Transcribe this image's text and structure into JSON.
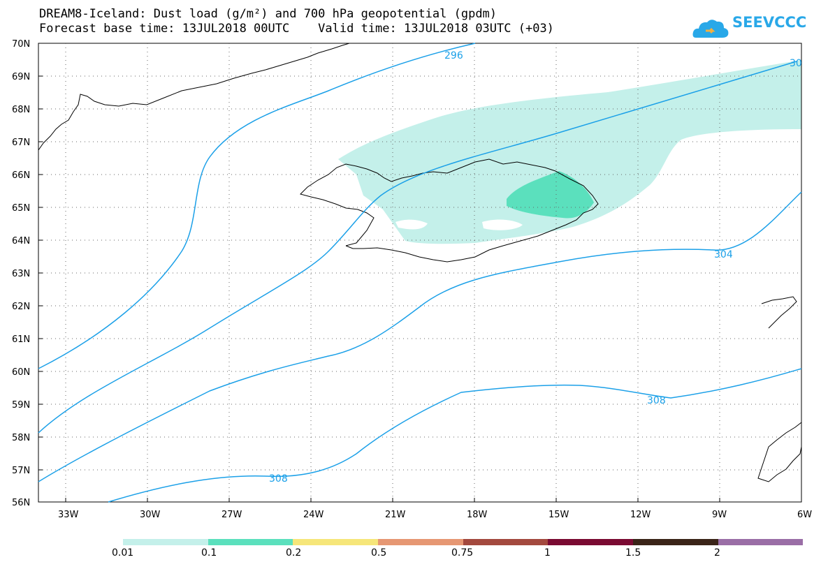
{
  "header": {
    "title": "DREAM8-Iceland: Dust load (g/m²) and 700 hPa geopotential (gpdm)",
    "subtitle": "Forecast base time: 13JUL2018 00UTC    Valid time: 13JUL2018 03UTC (+03)"
  },
  "logo": {
    "text": "SEEVCCC"
  },
  "map": {
    "lon_range": [
      -34,
      -6
    ],
    "lat_range": [
      56,
      70
    ],
    "lat_ticks": [
      "70N",
      "69N",
      "68N",
      "67N",
      "66N",
      "65N",
      "64N",
      "63N",
      "62N",
      "61N",
      "60N",
      "59N",
      "58N",
      "57N",
      "56N"
    ],
    "lon_ticks": [
      "33W",
      "30W",
      "27W",
      "24W",
      "21W",
      "18W",
      "15W",
      "12W",
      "9W",
      "6W"
    ],
    "contour_labels": [
      "296",
      "30",
      "304",
      "308",
      "308"
    ],
    "contour_color": "#1ba0e8"
  },
  "legend": {
    "labels": [
      "0.01",
      "0.1",
      "0.2",
      "0.5",
      "0.75",
      "1",
      "1.5",
      "2"
    ],
    "colors": [
      "#c4f0ea",
      "#5be0bd",
      "#f6e67a",
      "#e69773",
      "#a3493e",
      "#7a0a32",
      "#3a2418",
      "#9a6ea6"
    ]
  }
}
